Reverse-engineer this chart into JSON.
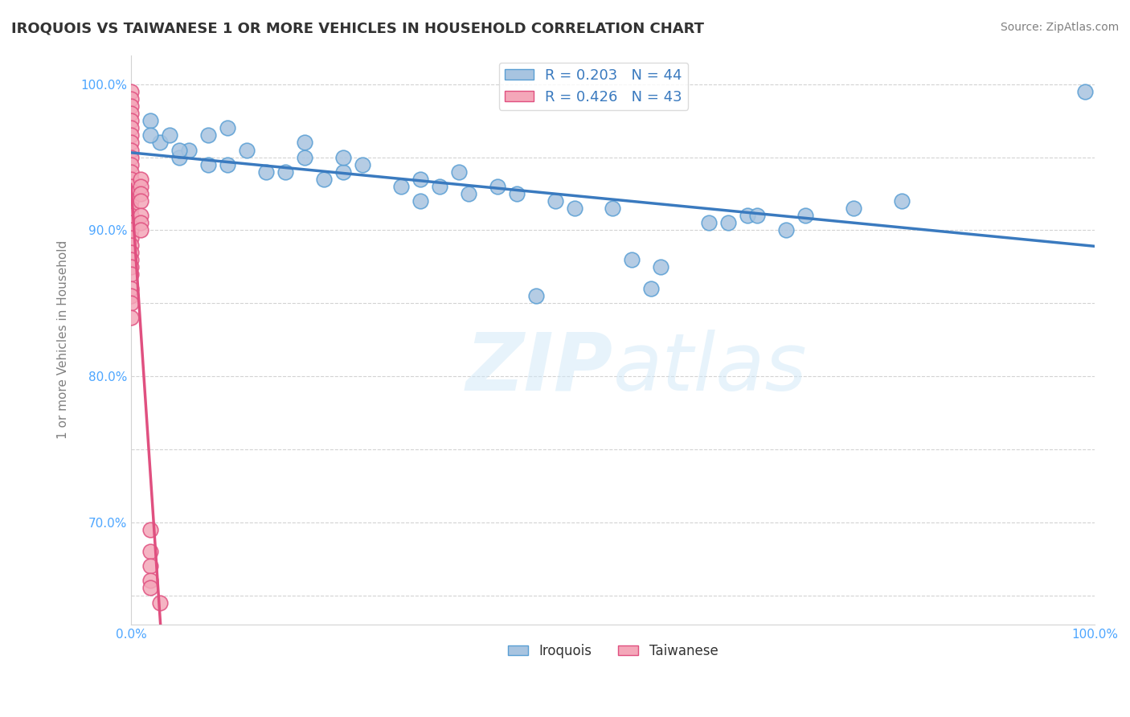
{
  "title": "IROQUOIS VS TAIWANESE 1 OR MORE VEHICLES IN HOUSEHOLD CORRELATION CHART",
  "source": "Source: ZipAtlas.com",
  "xlabel": "",
  "ylabel": "1 or more Vehicles in Household",
  "xlim": [
    0,
    1.0
  ],
  "ylim": [
    0.63,
    1.02
  ],
  "xticks": [
    0.0,
    0.25,
    0.5,
    0.75,
    1.0
  ],
  "xticklabels": [
    "0.0%",
    "",
    "",
    "",
    "100.0%"
  ],
  "yticks": [
    0.65,
    0.7,
    0.75,
    0.8,
    0.85,
    0.9,
    0.95,
    1.0
  ],
  "yticklabels": [
    "",
    "70.0%",
    "",
    "80.0%",
    "",
    "90.0%",
    "",
    "100.0%"
  ],
  "legend_r1": "R = 0.203   N = 44",
  "legend_r2": "R = 0.426   N = 43",
  "iroquois_color": "#a8c4e0",
  "taiwanese_color": "#f4a7b9",
  "line_color": "#3a7abf",
  "taiwanese_line_color": "#e05080",
  "watermark": "ZIPatlas",
  "iroquois_x": [
    0.02,
    0.03,
    0.04,
    0.05,
    0.06,
    0.08,
    0.1,
    0.12,
    0.14,
    0.16,
    0.18,
    0.2,
    0.22,
    0.24,
    0.28,
    0.3,
    0.32,
    0.34,
    0.38,
    0.4,
    0.44,
    0.46,
    0.5,
    0.52,
    0.54,
    0.6,
    0.62,
    0.64,
    0.65,
    0.68,
    0.3,
    0.18,
    0.1,
    0.05,
    0.08,
    0.22,
    0.35,
    0.42,
    0.55,
    0.7,
    0.75,
    0.8,
    0.99,
    0.02
  ],
  "iroquois_y": [
    0.975,
    0.96,
    0.965,
    0.95,
    0.955,
    0.945,
    0.945,
    0.955,
    0.94,
    0.94,
    0.95,
    0.935,
    0.94,
    0.945,
    0.93,
    0.935,
    0.93,
    0.94,
    0.93,
    0.925,
    0.92,
    0.915,
    0.915,
    0.88,
    0.86,
    0.905,
    0.905,
    0.91,
    0.91,
    0.9,
    0.92,
    0.96,
    0.97,
    0.955,
    0.965,
    0.95,
    0.925,
    0.855,
    0.875,
    0.91,
    0.915,
    0.92,
    0.995,
    0.965
  ],
  "taiwanese_x": [
    0.0,
    0.0,
    0.0,
    0.0,
    0.0,
    0.0,
    0.0,
    0.0,
    0.0,
    0.0,
    0.0,
    0.0,
    0.0,
    0.0,
    0.0,
    0.0,
    0.0,
    0.0,
    0.0,
    0.0,
    0.0,
    0.0,
    0.0,
    0.0,
    0.0,
    0.0,
    0.0,
    0.0,
    0.0,
    0.0,
    0.01,
    0.01,
    0.01,
    0.01,
    0.01,
    0.01,
    0.01,
    0.02,
    0.02,
    0.02,
    0.02,
    0.02,
    0.03
  ],
  "taiwanese_y": [
    0.995,
    0.99,
    0.985,
    0.98,
    0.975,
    0.97,
    0.965,
    0.96,
    0.955,
    0.95,
    0.945,
    0.94,
    0.935,
    0.93,
    0.925,
    0.92,
    0.915,
    0.91,
    0.905,
    0.9,
    0.895,
    0.89,
    0.885,
    0.88,
    0.875,
    0.87,
    0.86,
    0.855,
    0.85,
    0.84,
    0.935,
    0.93,
    0.925,
    0.92,
    0.91,
    0.905,
    0.9,
    0.695,
    0.68,
    0.67,
    0.66,
    0.655,
    0.645
  ]
}
